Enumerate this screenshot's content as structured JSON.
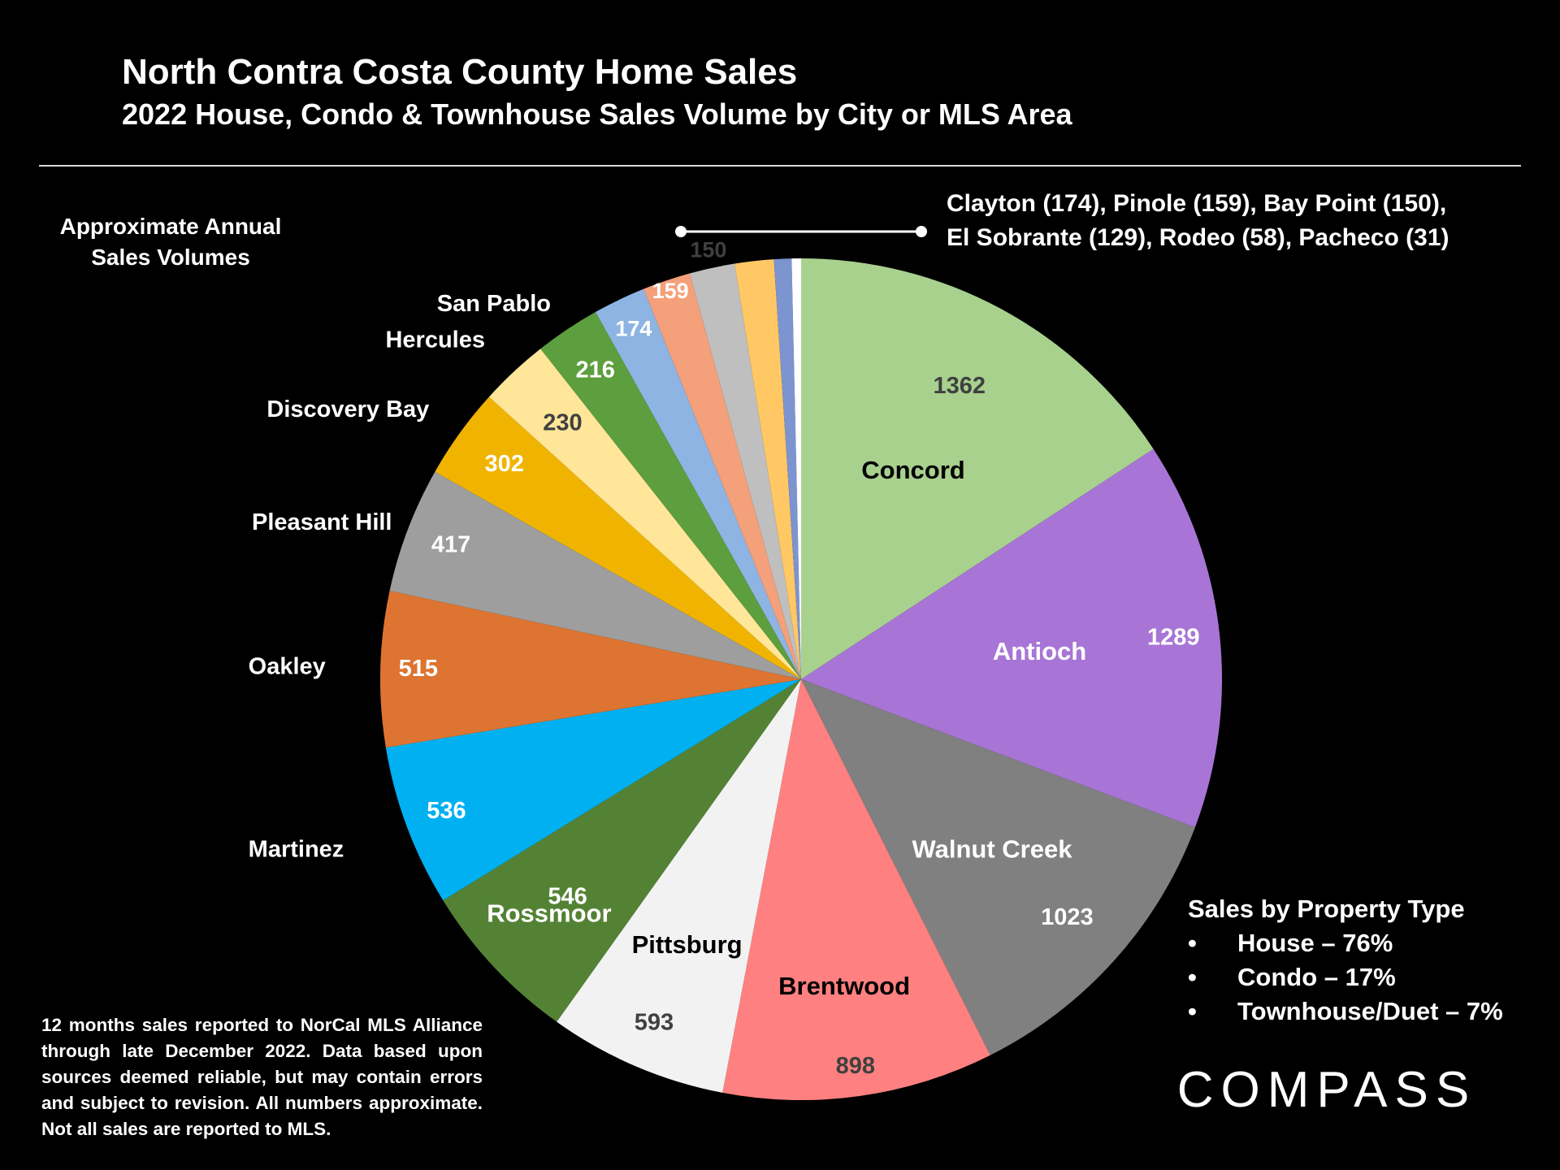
{
  "header": {
    "title": "North Contra Costa County Home Sales",
    "subtitle": "2022 House, Condo & Townhouse Sales Volume by City or MLS Area"
  },
  "approx_label": {
    "line1": "Approximate Annual",
    "line2": "Sales Volumes"
  },
  "small_cities_note": {
    "line1": "Clayton (174), Pinole (159), Bay Point (150),",
    "line2": "El Sobrante (129), Rodeo (58), Pacheco (31)"
  },
  "property_types": {
    "title": "Sales by Property Type",
    "bullet": "•",
    "items": [
      "House – 76%",
      "Condo – 17%",
      "Townhouse/Duet – 7%"
    ]
  },
  "footnote": "12 months sales reported to NorCal MLS Alliance through late December 2022. Data based upon sources deemed reliable, but may contain errors and subject to revision. All numbers approximate. Not all sales are reported to MLS.",
  "logo": {
    "text": "COMPASS"
  },
  "chart_data": {
    "type": "pie",
    "title": "North Contra Costa County Home Sales",
    "subtitle": "2022 House, Condo & Townhouse Sales Volume by City or MLS Area",
    "start": "12 o'clock",
    "direction": "clockwise",
    "slices": [
      {
        "label": "Concord",
        "value": 1362,
        "color": "#A9D18E",
        "text_color": "#000000",
        "value_color": "#404040",
        "show_label": true
      },
      {
        "label": "Antioch",
        "value": 1289,
        "color": "#A875D6",
        "text_color": "#FFFFFF",
        "value_color": "#FFFFFF",
        "show_label": true
      },
      {
        "label": "Walnut Creek",
        "value": 1023,
        "color": "#808080",
        "text_color": "#FFFFFF",
        "value_color": "#FFFFFF",
        "show_label": true
      },
      {
        "label": "Brentwood",
        "value": 898,
        "color": "#FF8080",
        "text_color": "#000000",
        "value_color": "#404040",
        "show_label": true
      },
      {
        "label": "Pittsburg",
        "value": 593,
        "color": "#F2F2F2",
        "text_color": "#000000",
        "value_color": "#404040",
        "show_label": true
      },
      {
        "label": "Rossmoor",
        "value": 546,
        "color": "#548235",
        "text_color": "#FFFFFF",
        "value_color": "#FFFFFF",
        "show_label": true
      },
      {
        "label": "Martinez",
        "value": 536,
        "color": "#00B0F0",
        "text_color": "#FFFFFF",
        "value_color": "#FFFFFF",
        "show_label": true
      },
      {
        "label": "Oakley",
        "value": 515,
        "color": "#DD7431",
        "text_color": "#FFFFFF",
        "value_color": "#FFFFFF",
        "show_label": true
      },
      {
        "label": "Pleasant Hill",
        "value": 417,
        "color": "#9E9E9E",
        "text_color": "#FFFFFF",
        "value_color": "#FFFFFF",
        "show_label": true
      },
      {
        "label": "Discovery Bay",
        "value": 302,
        "color": "#F0B400",
        "text_color": "#FFFFFF",
        "value_color": "#FFFFFF",
        "show_label": true
      },
      {
        "label": "Hercules",
        "value": 230,
        "color": "#FFE699",
        "text_color": "#FFFFFF",
        "value_color": "#404040",
        "show_label": true
      },
      {
        "label": "San Pablo",
        "value": 216,
        "color": "#5D9E3E",
        "text_color": "#FFFFFF",
        "value_color": "#FFFFFF",
        "show_label": true
      },
      {
        "label": "Clayton",
        "value": 174,
        "color": "#8EB4E3",
        "text_color": "#FFFFFF",
        "value_color": "#FFFFFF",
        "show_label": false
      },
      {
        "label": "Pinole",
        "value": 159,
        "color": "#F4A07A",
        "text_color": "#FFFFFF",
        "value_color": "#FFFFFF",
        "show_label": false
      },
      {
        "label": "Bay Point",
        "value": 150,
        "color": "#BFBFBF",
        "text_color": "#FFFFFF",
        "value_color": "#404040",
        "show_label": false
      },
      {
        "label": "El Sobrante",
        "value": 129,
        "color": "#FFC864",
        "text_color": "#FFFFFF",
        "value_color": "#FFFFFF",
        "show_label": false
      },
      {
        "label": "Rodeo",
        "value": 58,
        "color": "#7C94D0",
        "text_color": "#FFFFFF",
        "value_color": "#FFFFFF",
        "show_label": false
      },
      {
        "label": "Pacheco",
        "value": 31,
        "color": "#FFFFFF",
        "text_color": "#FFFFFF",
        "value_color": "#FFFFFF",
        "show_label": false
      }
    ]
  }
}
